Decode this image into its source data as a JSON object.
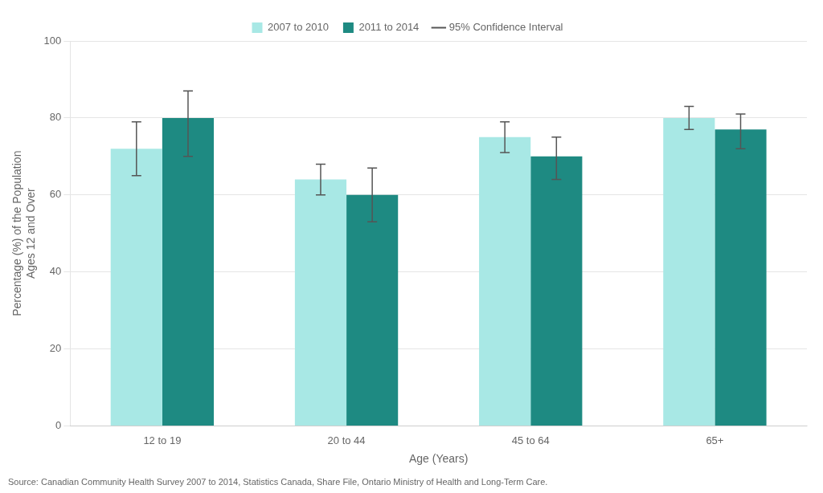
{
  "chart_data": {
    "type": "bar",
    "categories": [
      "12 to 19",
      "20 to 44",
      "45 to 64",
      "65+"
    ],
    "series": [
      {
        "name": "2007 to 2010",
        "color": "#A8E8E5",
        "values": [
          72,
          64,
          75,
          80
        ],
        "ci_lower": [
          65,
          60,
          71,
          77
        ],
        "ci_upper": [
          79,
          68,
          79,
          83
        ]
      },
      {
        "name": "2011 to 2014",
        "color": "#1E8A82",
        "values": [
          80,
          60,
          70,
          77
        ],
        "ci_lower": [
          70,
          53,
          64,
          72
        ],
        "ci_upper": [
          87,
          67,
          75,
          81
        ]
      }
    ],
    "ci_label": "95% Confidence Interval",
    "ylabel": "Percentage (%) of the Population\nAges 12 and Over",
    "xlabel": "Age (Years)",
    "ylim": [
      0,
      100
    ],
    "yticks": [
      0,
      20,
      40,
      60,
      80,
      100
    ],
    "grid": true,
    "legend": "top",
    "source": "Source: Canadian Community Health Survey 2007 to 2014, Statistics Canada, Share File, Ontario Ministry of Health and Long-Term Care."
  }
}
